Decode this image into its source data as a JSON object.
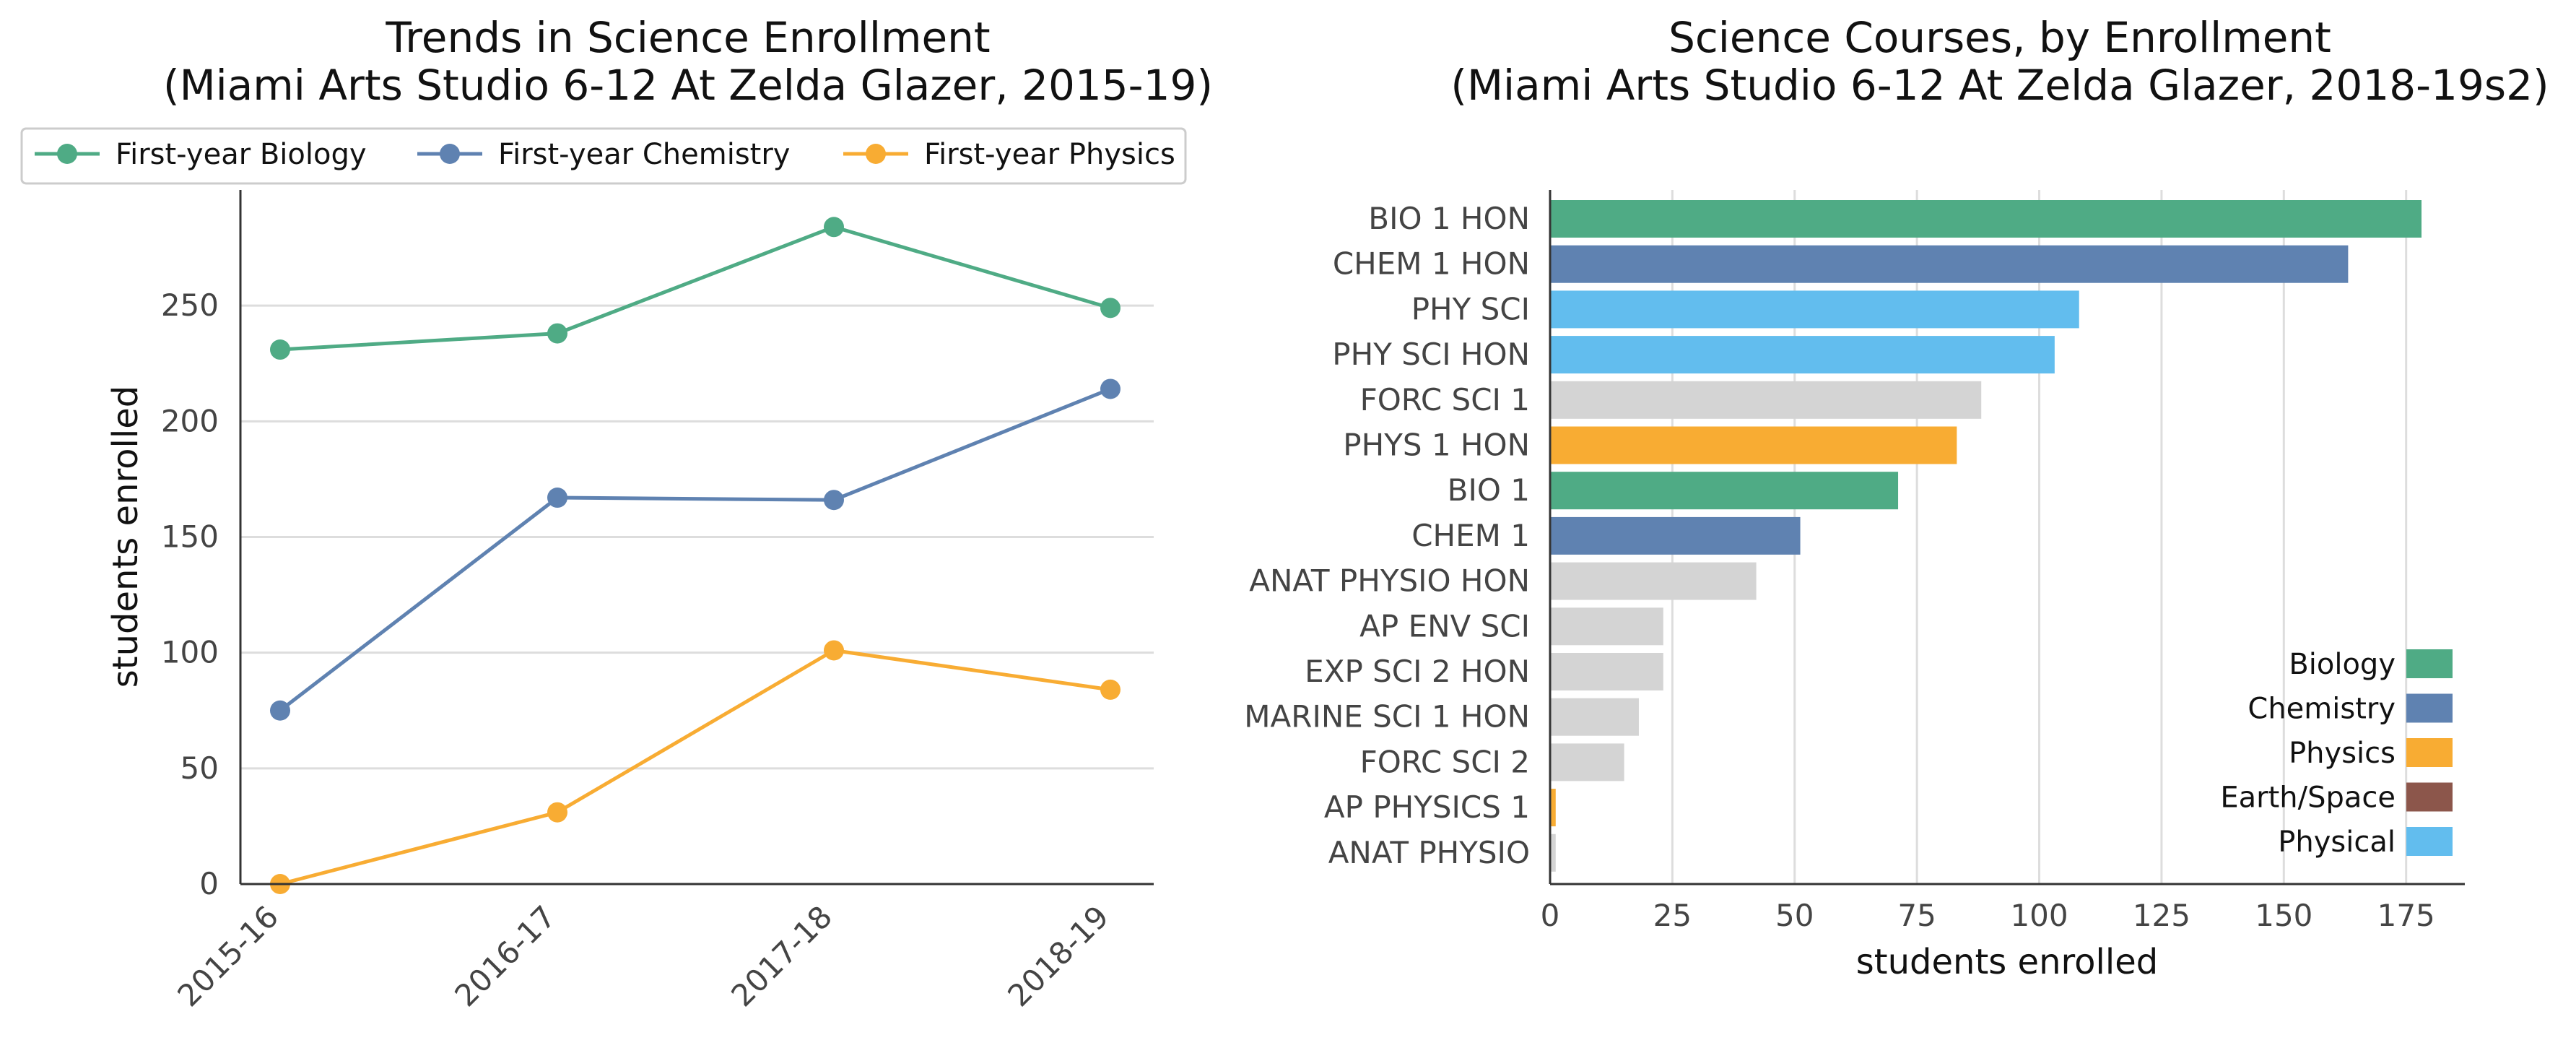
{
  "chart_data": [
    {
      "type": "line",
      "title": "Trends in Science Enrollment",
      "subtitle": "(Miami Arts Studio 6-12 At Zelda Glazer, 2015-19)",
      "xlabel": "",
      "ylabel": "students enrolled",
      "categories": [
        "2015-16",
        "2016-17",
        "2017-18",
        "2018-19"
      ],
      "series": [
        {
          "name": "First-year Biology",
          "color": "#4fab85",
          "values": [
            231,
            238,
            284,
            249
          ]
        },
        {
          "name": "First-year Chemistry",
          "color": "#5f82b1",
          "values": [
            75,
            167,
            166,
            214
          ]
        },
        {
          "name": "First-year Physics",
          "color": "#f8ac33",
          "values": [
            0,
            31,
            101,
            84
          ]
        }
      ],
      "ylim": [
        0,
        300
      ],
      "yticks": [
        0,
        50,
        100,
        150,
        200,
        250
      ],
      "grid": "horizontal",
      "legend_position": "top"
    },
    {
      "type": "bar",
      "orientation": "horizontal",
      "title": "Science Courses, by Enrollment",
      "subtitle": "(Miami Arts Studio 6-12 At Zelda Glazer, 2018-19s2)",
      "xlabel": "students enrolled",
      "ylabel": "",
      "bars": [
        {
          "label": "BIO 1 HON",
          "value": 178,
          "group": "Biology"
        },
        {
          "label": "CHEM 1 HON",
          "value": 163,
          "group": "Chemistry"
        },
        {
          "label": "PHY SCI",
          "value": 108,
          "group": "Physical"
        },
        {
          "label": "PHY SCI HON",
          "value": 103,
          "group": "Physical"
        },
        {
          "label": "FORC SCI 1",
          "value": 88,
          "group": "Other"
        },
        {
          "label": "PHYS 1 HON",
          "value": 83,
          "group": "Physics"
        },
        {
          "label": "BIO 1",
          "value": 71,
          "group": "Biology"
        },
        {
          "label": "CHEM 1",
          "value": 51,
          "group": "Chemistry"
        },
        {
          "label": "ANAT PHYSIO HON",
          "value": 42,
          "group": "Other"
        },
        {
          "label": "AP ENV SCI",
          "value": 23,
          "group": "Other"
        },
        {
          "label": "EXP SCI 2 HON",
          "value": 23,
          "group": "Other"
        },
        {
          "label": "MARINE SCI 1 HON",
          "value": 18,
          "group": "Other"
        },
        {
          "label": "FORC SCI 2",
          "value": 15,
          "group": "Other"
        },
        {
          "label": "AP PHYSICS 1",
          "value": 1,
          "group": "Physics"
        },
        {
          "label": "ANAT PHYSIO",
          "value": 1,
          "group": "Other"
        }
      ],
      "legend": [
        {
          "name": "Biology",
          "color": "#4fab85"
        },
        {
          "name": "Chemistry",
          "color": "#5f82b1"
        },
        {
          "name": "Physics",
          "color": "#f8ac33"
        },
        {
          "name": "Earth/Space",
          "color": "#8c564b"
        },
        {
          "name": "Physical",
          "color": "#62bdee"
        }
      ],
      "other_color": "#d4d4d4",
      "xlim": [
        0,
        187
      ],
      "xticks": [
        0,
        25,
        50,
        75,
        100,
        125,
        150,
        175
      ],
      "grid": "vertical",
      "legend_position": "lower-right"
    }
  ]
}
